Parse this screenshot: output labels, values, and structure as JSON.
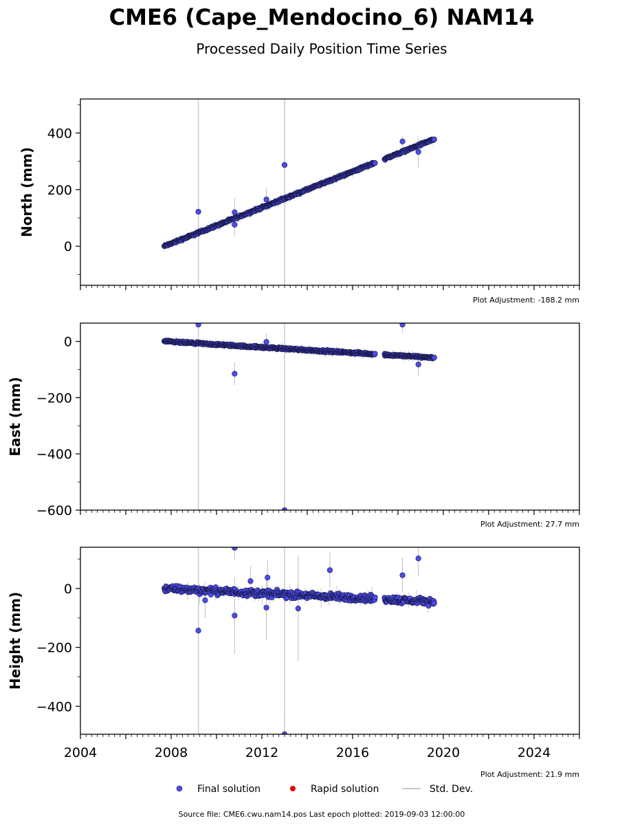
{
  "header": {
    "title": "CME6 (Cape_Mendocino_6) NAM14",
    "subtitle": "Processed Daily Position Time Series"
  },
  "legend": {
    "final": "Final solution",
    "rapid": "Rapid solution",
    "stddev": "Std. Dev."
  },
  "footer": {
    "source": "Source file: CME6.cwu.nam14.pos  Last epoch plotted: 2019-09-03 12:00:00"
  },
  "colors": {
    "final": "#4c4cee",
    "rapid": "#e00000",
    "stddev": "#c8c8c8"
  },
  "chart_data": [
    {
      "type": "scatter",
      "ylabel": "North (mm)",
      "adjustment": "Plot Adjustment: -188.2 mm",
      "xlim": [
        2004,
        2026
      ],
      "ylim": [
        -138,
        520
      ],
      "yticks": [
        0,
        200,
        400
      ],
      "trend": {
        "x": [
          2007.7,
          2019.6
        ],
        "y": [
          0,
          378
        ]
      },
      "gap": [
        2017.0,
        2017.4
      ],
      "noise": 3,
      "outliers": [
        {
          "x": 2009.2,
          "y": 122,
          "err": 140
        },
        {
          "x": 2010.8,
          "y": 76,
          "err": 40
        },
        {
          "x": 2010.8,
          "y": 120,
          "err": 50
        },
        {
          "x": 2012.2,
          "y": 165,
          "err": 40
        },
        {
          "x": 2013.0,
          "y": 287,
          "err": 520
        },
        {
          "x": 2018.2,
          "y": 370,
          "err": 20
        },
        {
          "x": 2018.9,
          "y": 333,
          "err": 55
        }
      ],
      "tall_errs": [
        {
          "x": 2009.2,
          "low": -138,
          "high": 520
        },
        {
          "x": 2013.0,
          "low": -138,
          "high": 520
        }
      ]
    },
    {
      "type": "scatter",
      "ylabel": "East (mm)",
      "adjustment": "Plot Adjustment: 27.7 mm",
      "xlim": [
        2004,
        2026
      ],
      "ylim": [
        -600,
        65
      ],
      "yticks": [
        0,
        -200,
        -400,
        -600
      ],
      "trend": {
        "x": [
          2007.7,
          2019.6
        ],
        "y": [
          0,
          -58
        ]
      },
      "gap": [
        2017.0,
        2017.4
      ],
      "noise": 3,
      "outliers": [
        {
          "x": 2009.2,
          "y": 60,
          "err": 30
        },
        {
          "x": 2010.8,
          "y": -115,
          "err": 40
        },
        {
          "x": 2012.2,
          "y": -2,
          "err": 30
        },
        {
          "x": 2013.0,
          "y": -600,
          "err": 40
        },
        {
          "x": 2018.2,
          "y": 60,
          "err": 30
        },
        {
          "x": 2018.9,
          "y": -82,
          "err": 40
        }
      ],
      "tall_errs": [
        {
          "x": 2009.2,
          "low": -600,
          "high": 65
        },
        {
          "x": 2013.0,
          "low": -600,
          "high": 65
        }
      ]
    },
    {
      "type": "scatter",
      "ylabel": "Height (mm)",
      "adjustment": "Plot Adjustment: 21.9 mm",
      "xlim": [
        2004,
        2026
      ],
      "ylim": [
        -495,
        140
      ],
      "yticks": [
        0,
        -200,
        -400
      ],
      "xticks": [
        2004,
        2008,
        2012,
        2016,
        2020,
        2024
      ],
      "trend": {
        "x": [
          2007.7,
          2019.6
        ],
        "y": [
          0,
          -45
        ]
      },
      "gap": [
        2017.0,
        2017.4
      ],
      "noise": 9,
      "outliers": [
        {
          "x": 2009.2,
          "y": -143,
          "err": 130
        },
        {
          "x": 2009.5,
          "y": -40,
          "err": 60
        },
        {
          "x": 2010.8,
          "y": 138,
          "err": 40
        },
        {
          "x": 2010.8,
          "y": -92,
          "err": 130
        },
        {
          "x": 2011.5,
          "y": 25,
          "err": 50
        },
        {
          "x": 2012.2,
          "y": -65,
          "err": 110
        },
        {
          "x": 2012.25,
          "y": 37,
          "err": 60
        },
        {
          "x": 2013.0,
          "y": -495,
          "err": 60
        },
        {
          "x": 2013.6,
          "y": -68,
          "err": 180
        },
        {
          "x": 2015.0,
          "y": 62,
          "err": 60
        },
        {
          "x": 2018.2,
          "y": 45,
          "err": 60
        },
        {
          "x": 2018.9,
          "y": 102,
          "err": 60
        }
      ],
      "tall_errs": [
        {
          "x": 2009.2,
          "low": -495,
          "high": 140
        },
        {
          "x": 2013.0,
          "low": -495,
          "high": 140
        }
      ]
    }
  ]
}
